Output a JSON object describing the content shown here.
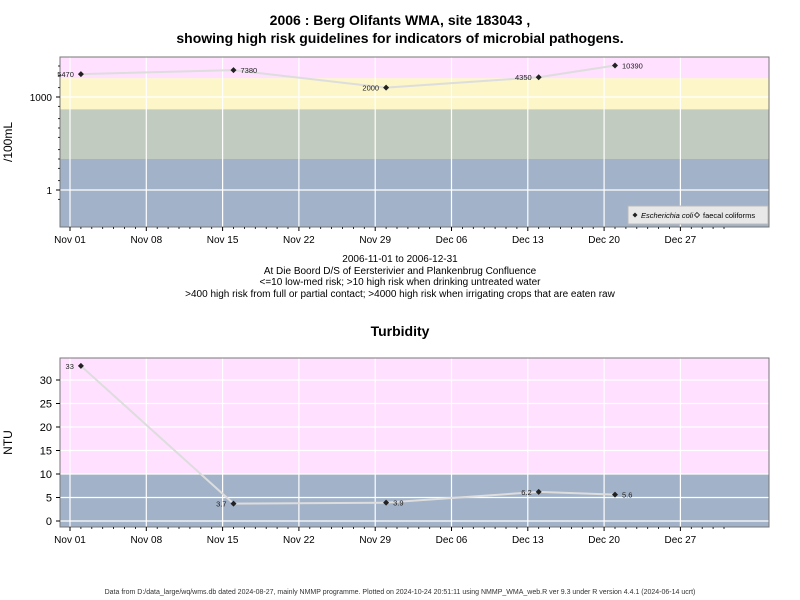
{
  "page": {
    "title_line1": "2006 : Berg Olifants WMA, site 183043 ,",
    "title_line2": "showing high risk guidelines for indicators of microbial pathogens.",
    "caption_lines": [
      "2006-11-01 to 2006-12-31",
      "At Die Boord D/S of Eersterivier and Plankenbrug Confluence",
      "<=10 low-med risk; >10 high risk when drinking untreated water",
      ">400 high risk from full or partial contact; >4000 high risk when irrigating crops that are eaten raw"
    ],
    "footer": "Data from D:/data_large/wq/wms.db dated 2024-08-27, mainly NMMP programme. Plotted on 2024-10-24 20:51:11 using NMMP_WMA_web.R ver 9.3 under R version 4.4.1 (2024-06-14 ucrt)"
  },
  "colors": {
    "pink": "#ffe0ff",
    "yellow": "#fcf6c8",
    "grey_green": "#c2cbbf",
    "blue_grey": "#a2b2c8",
    "line": "#dddddd",
    "marker": "#222222"
  },
  "chart_data": [
    {
      "type": "line",
      "title": "",
      "xlabel": "",
      "ylabel": "/100mL",
      "yscale": "log",
      "x_ticks": [
        "Nov 01",
        "Nov 08",
        "Nov 15",
        "Nov 22",
        "Nov 29",
        "Dec 06",
        "Dec 13",
        "Dec 20",
        "Dec 27"
      ],
      "y_ticks": [
        "1",
        "1000"
      ],
      "risk_bands": [
        {
          "from": 4000,
          "color": "pink"
        },
        {
          "from": 400,
          "to": 4000,
          "color": "yellow"
        },
        {
          "from": 10,
          "to": 400,
          "color": "grey_green"
        },
        {
          "to": 10,
          "color": "blue_grey"
        }
      ],
      "legend": {
        "position": "bottom-right",
        "entries": [
          "Escherichia coli",
          "faecal coliforms"
        ]
      },
      "series": [
        {
          "name": "Escherichia coli",
          "x": [
            "2006-11-02",
            "2006-11-16",
            "2006-11-30",
            "2006-12-14",
            "2006-12-21"
          ],
          "values": [
            5470,
            7380,
            2000,
            4350,
            10390
          ],
          "labels": [
            "5470",
            "7380",
            "2000",
            "4350",
            "10390"
          ]
        }
      ]
    },
    {
      "type": "line",
      "title": "Turbidity",
      "xlabel": "",
      "ylabel": "NTU",
      "x_ticks": [
        "Nov 01",
        "Nov 08",
        "Nov 15",
        "Nov 22",
        "Nov 29",
        "Dec 06",
        "Dec 13",
        "Dec 20",
        "Dec 27"
      ],
      "y_ticks": [
        "0",
        "5",
        "10",
        "15",
        "20",
        "25",
        "30"
      ],
      "risk_bands": [
        {
          "from": 10,
          "color": "pink"
        },
        {
          "to": 10,
          "color": "blue_grey"
        }
      ],
      "series": [
        {
          "name": "",
          "x": [
            "2006-11-02",
            "2006-11-16",
            "2006-11-30",
            "2006-12-14",
            "2006-12-21"
          ],
          "values": [
            33,
            3.7,
            3.9,
            6.2,
            5.6
          ],
          "labels": [
            "33",
            "3.7",
            "3.9",
            "6.2",
            "5.6"
          ]
        }
      ]
    }
  ]
}
